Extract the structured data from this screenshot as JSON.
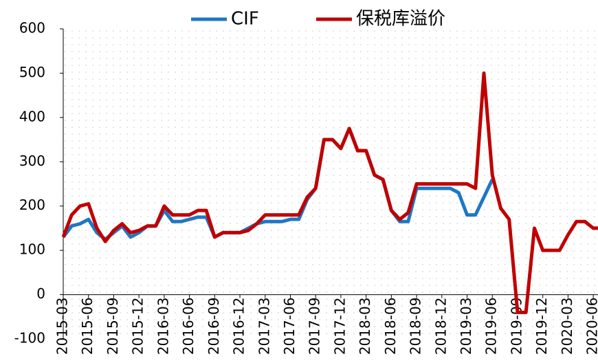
{
  "chart_data": {
    "type": "line",
    "categories": [
      "2015-03",
      null,
      null,
      "2015-06",
      null,
      null,
      "2015-09",
      null,
      null,
      "2015-12",
      null,
      null,
      "2016-03",
      null,
      null,
      "2016-06",
      null,
      null,
      "2016-09",
      null,
      null,
      "2016-12",
      null,
      null,
      "2017-03",
      null,
      null,
      "2017-06",
      null,
      null,
      "2017-09",
      null,
      null,
      "2017-12",
      null,
      null,
      "2018-03",
      null,
      null,
      "2018-06",
      null,
      null,
      "2018-09",
      null,
      null,
      "2018-12",
      null,
      null,
      "2019-03",
      null,
      null,
      "2019-06",
      null,
      null,
      "2019-09",
      null,
      null,
      "2019-12",
      null,
      null,
      "2020-03",
      null,
      null,
      "2020-06",
      null
    ],
    "series": [
      {
        "name": "CIF",
        "color": "#1f77c4",
        "values": [
          130,
          155,
          160,
          170,
          140,
          125,
          140,
          155,
          130,
          140,
          155,
          155,
          190,
          165,
          165,
          170,
          175,
          175,
          130,
          140,
          140,
          140,
          150,
          160,
          165,
          165,
          165,
          170,
          170,
          215,
          240,
          350,
          350,
          330,
          375,
          325,
          325,
          270,
          260,
          190,
          165,
          165,
          240,
          240,
          240,
          240,
          240,
          230,
          180,
          180,
          220,
          260,
          null,
          null,
          null,
          null,
          null,
          null,
          null,
          null,
          null,
          null,
          null,
          null,
          null
        ]
      },
      {
        "name": "保税库溢价",
        "color": "#c00000",
        "values": [
          130,
          180,
          200,
          205,
          150,
          120,
          145,
          160,
          140,
          145,
          155,
          155,
          200,
          180,
          180,
          180,
          190,
          190,
          130,
          140,
          140,
          140,
          145,
          160,
          180,
          180,
          180,
          180,
          180,
          220,
          240,
          350,
          350,
          330,
          375,
          325,
          325,
          270,
          260,
          190,
          170,
          185,
          250,
          250,
          250,
          250,
          250,
          250,
          250,
          240,
          500,
          270,
          195,
          170,
          -40,
          -40,
          150,
          100,
          100,
          100,
          135,
          165,
          165,
          150,
          150
        ]
      }
    ],
    "ylim": [
      -100,
      600
    ],
    "yticks": [
      -100,
      0,
      100,
      200,
      300,
      400,
      500,
      600
    ],
    "grid": "dotted",
    "legend": "top"
  }
}
